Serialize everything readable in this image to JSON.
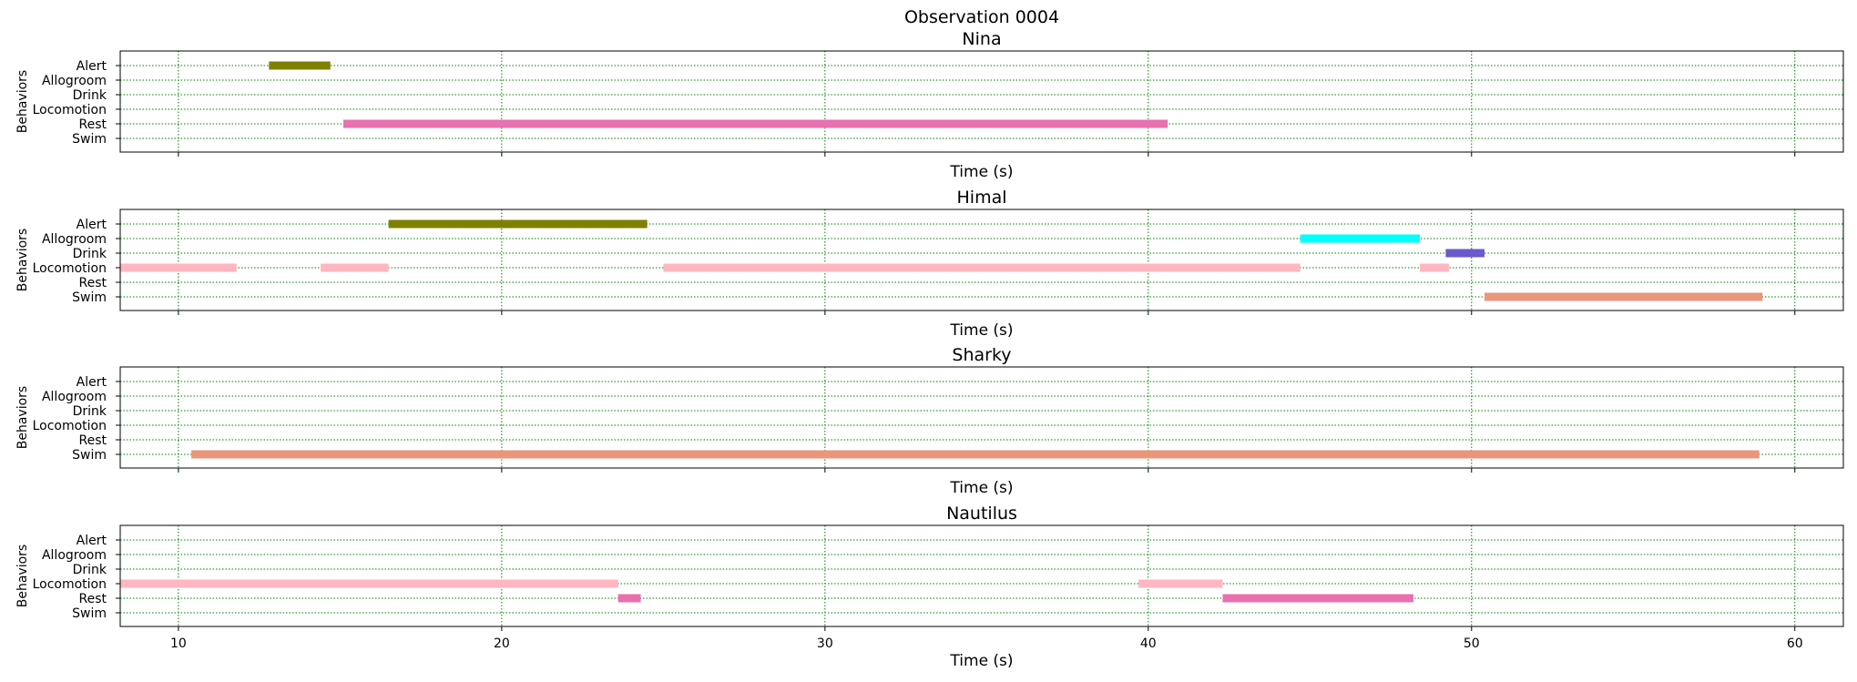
{
  "figure": {
    "title": "Observation 0004"
  },
  "chart_data": [
    {
      "type": "timeline",
      "title": "Nina",
      "xlabel": "Time (s)",
      "ylabel": "Behaviors",
      "xlim": [
        8.2,
        61.5
      ],
      "xticks": [
        10,
        20,
        30,
        40,
        50,
        60
      ],
      "show_xticklabels": false,
      "grid": true,
      "categories": [
        "Alert",
        "Allogroom",
        "Drink",
        "Locomotion",
        "Rest",
        "Swim"
      ],
      "intervals": [
        {
          "behavior": "Alert",
          "start": 12.8,
          "end": 14.7,
          "color": "#808000"
        },
        {
          "behavior": "Rest",
          "start": 15.1,
          "end": 40.6,
          "color": "#e870b0"
        }
      ]
    },
    {
      "type": "timeline",
      "title": "Himal",
      "xlabel": "Time (s)",
      "ylabel": "Behaviors",
      "xlim": [
        8.2,
        61.5
      ],
      "xticks": [
        10,
        20,
        30,
        40,
        50,
        60
      ],
      "show_xticklabels": false,
      "grid": true,
      "categories": [
        "Alert",
        "Allogroom",
        "Drink",
        "Locomotion",
        "Rest",
        "Swim"
      ],
      "intervals": [
        {
          "behavior": "Alert",
          "start": 16.5,
          "end": 24.5,
          "color": "#808000"
        },
        {
          "behavior": "Allogroom",
          "start": 44.7,
          "end": 48.4,
          "color": "#00ffff"
        },
        {
          "behavior": "Drink",
          "start": 49.2,
          "end": 50.4,
          "color": "#6a5acd"
        },
        {
          "behavior": "Locomotion",
          "start": 8.2,
          "end": 11.8,
          "color": "#ffb6c1"
        },
        {
          "behavior": "Locomotion",
          "start": 14.4,
          "end": 16.5,
          "color": "#ffb6c1"
        },
        {
          "behavior": "Locomotion",
          "start": 25.0,
          "end": 44.7,
          "color": "#ffb6c1"
        },
        {
          "behavior": "Locomotion",
          "start": 48.4,
          "end": 49.3,
          "color": "#ffb6c1"
        },
        {
          "behavior": "Swim",
          "start": 50.4,
          "end": 59.0,
          "color": "#e9967a"
        }
      ]
    },
    {
      "type": "timeline",
      "title": "Sharky",
      "xlabel": "Time (s)",
      "ylabel": "Behaviors",
      "xlim": [
        8.2,
        61.5
      ],
      "xticks": [
        10,
        20,
        30,
        40,
        50,
        60
      ],
      "show_xticklabels": false,
      "grid": true,
      "categories": [
        "Alert",
        "Allogroom",
        "Drink",
        "Locomotion",
        "Rest",
        "Swim"
      ],
      "intervals": [
        {
          "behavior": "Swim",
          "start": 10.4,
          "end": 58.9,
          "color": "#e9967a"
        }
      ]
    },
    {
      "type": "timeline",
      "title": "Nautilus",
      "xlabel": "Time (s)",
      "ylabel": "Behaviors",
      "xlim": [
        8.2,
        61.5
      ],
      "xticks": [
        10,
        20,
        30,
        40,
        50,
        60
      ],
      "show_xticklabels": true,
      "grid": true,
      "categories": [
        "Alert",
        "Allogroom",
        "Drink",
        "Locomotion",
        "Rest",
        "Swim"
      ],
      "intervals": [
        {
          "behavior": "Locomotion",
          "start": 8.2,
          "end": 23.6,
          "color": "#ffb6c1"
        },
        {
          "behavior": "Rest",
          "start": 23.6,
          "end": 24.3,
          "color": "#e870b0"
        },
        {
          "behavior": "Locomotion",
          "start": 39.7,
          "end": 42.3,
          "color": "#ffb6c1"
        },
        {
          "behavior": "Rest",
          "start": 42.3,
          "end": 48.2,
          "color": "#e870b0"
        }
      ]
    }
  ]
}
